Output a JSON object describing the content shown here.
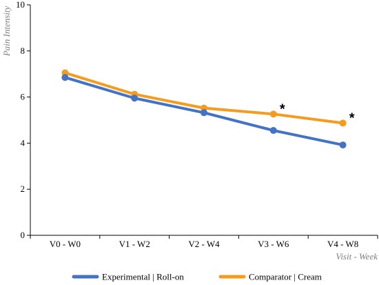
{
  "chart_data": {
    "type": "line",
    "categories": [
      "V0 - W0",
      "V1 - W2",
      "V2 - W4",
      "V3 - W6",
      "V4 - W8"
    ],
    "series": [
      {
        "name": "Experimental | Roll-on",
        "color": "#4472c4",
        "values": [
          6.85,
          5.95,
          5.32,
          4.55,
          3.92
        ]
      },
      {
        "name": "Comparator | Cream",
        "color": "#f39c1f",
        "values": [
          7.05,
          6.12,
          5.52,
          5.26,
          4.87
        ]
      }
    ],
    "xlabel": "Visit - Week",
    "ylabel": "Pain Intensity",
    "ylim": [
      0,
      10
    ],
    "yticks": [
      0,
      2,
      4,
      6,
      8,
      10
    ],
    "grid": false,
    "legend_position": "bottom",
    "annotations": [
      {
        "text": "*",
        "category": "V3 - W6"
      },
      {
        "text": "*",
        "category": "V4 - W8"
      }
    ]
  }
}
